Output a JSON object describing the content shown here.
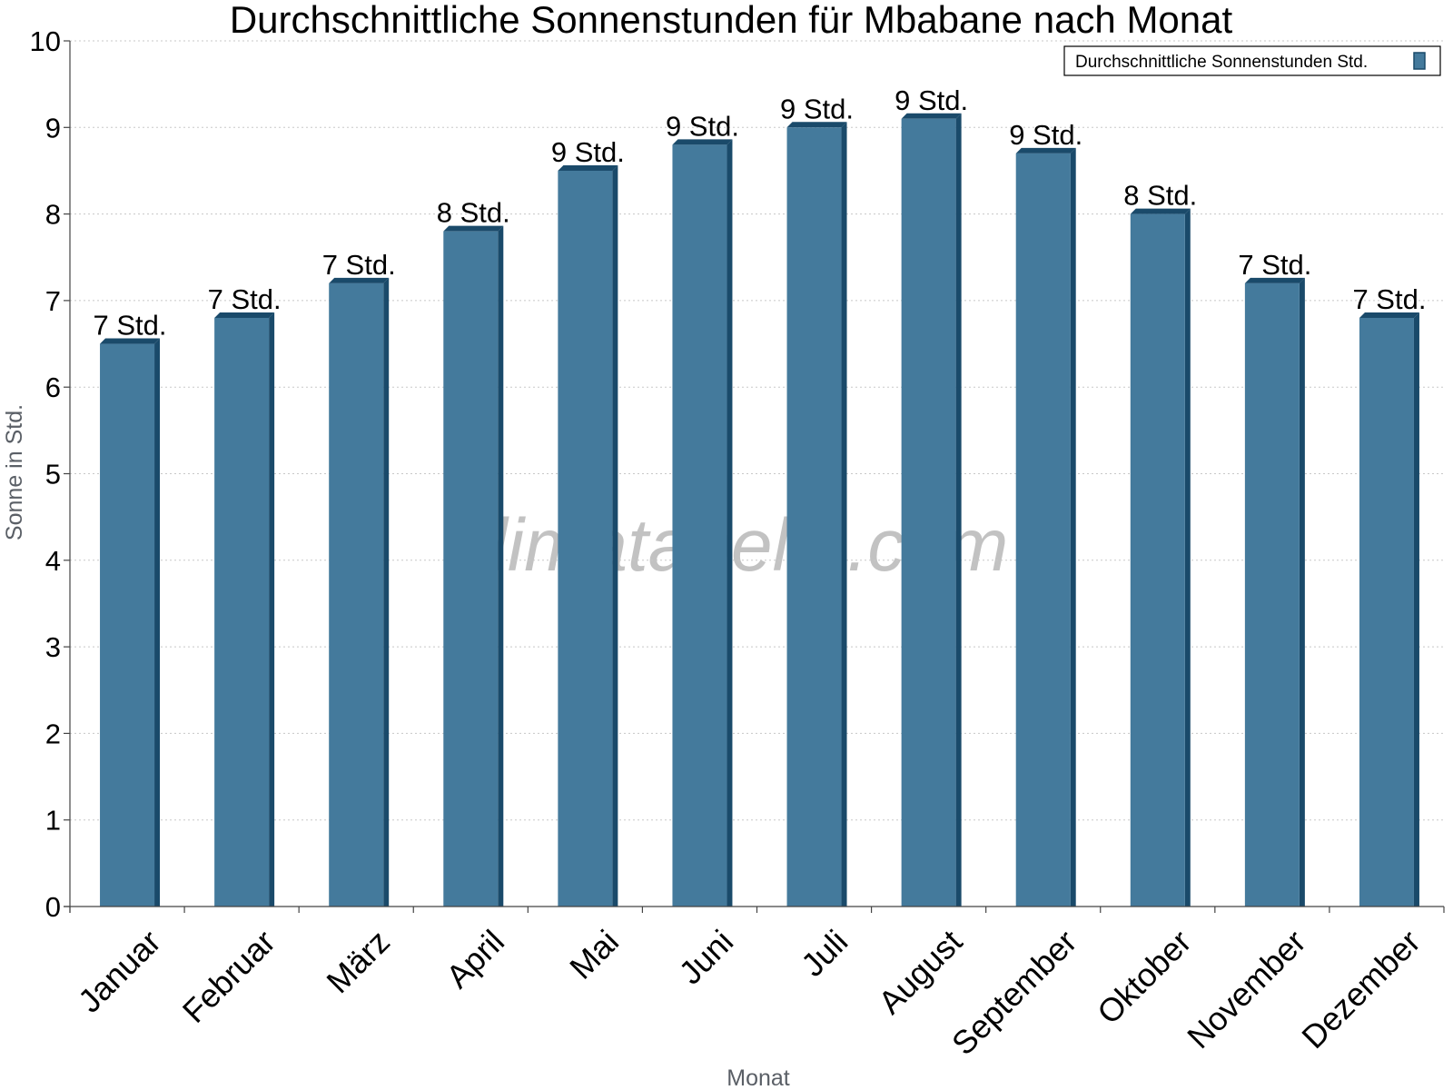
{
  "chart_data": {
    "type": "bar",
    "title": "Durchschnittliche Sonnenstunden für Mbabane nach Monat",
    "xlabel": "Monat",
    "ylabel": "Sonne in Std.",
    "ylim": [
      0,
      10
    ],
    "yticks": [
      0,
      1,
      2,
      3,
      4,
      5,
      6,
      7,
      8,
      9,
      10
    ],
    "grid": true,
    "legend_position": "top-right",
    "categories": [
      "Januar",
      "Februar",
      "März",
      "April",
      "Mai",
      "Juni",
      "Juli",
      "August",
      "September",
      "Oktober",
      "November",
      "Dezember"
    ],
    "series": [
      {
        "name": "Durchschnittliche Sonnenstunden Std.",
        "values": [
          6.5,
          6.8,
          7.2,
          7.8,
          8.5,
          8.8,
          9.0,
          9.1,
          8.7,
          8.0,
          7.2,
          6.8
        ],
        "labels": [
          "7 Std.",
          "7 Std.",
          "7 Std.",
          "8 Std.",
          "9 Std.",
          "9 Std.",
          "9 Std.",
          "9 Std.",
          "9 Std.",
          "8 Std.",
          "7 Std.",
          "7 Std."
        ],
        "color": "#447a9c",
        "shade_color": "#1a4a6a"
      }
    ],
    "watermark": "klimatabelle.com"
  }
}
